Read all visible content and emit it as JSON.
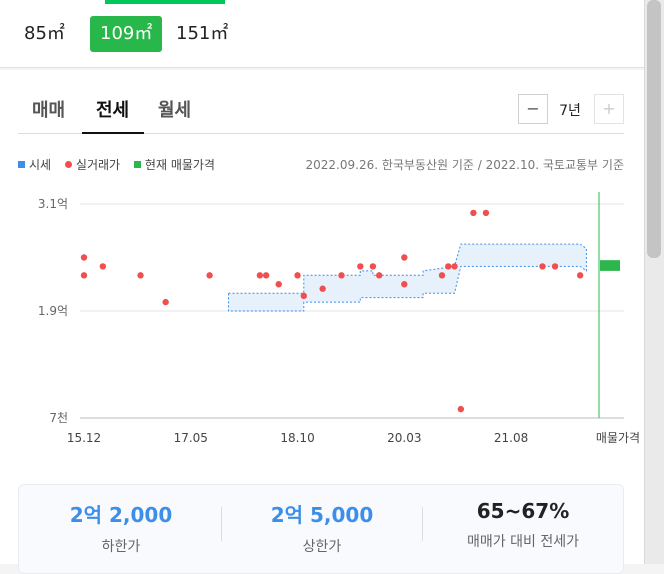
{
  "area_options": [
    {
      "label": "85㎡",
      "selected": false
    },
    {
      "label": "109㎡",
      "selected": true
    },
    {
      "label": "151㎡",
      "selected": false
    }
  ],
  "tabs": [
    {
      "label": "매매",
      "selected": false
    },
    {
      "label": "전세",
      "selected": true
    },
    {
      "label": "월세",
      "selected": false
    }
  ],
  "period": {
    "minus": "−",
    "value": "7년",
    "plus": "+"
  },
  "legend": [
    {
      "label": "시세",
      "icon": "square-blue"
    },
    {
      "label": "실거래가",
      "icon": "dot-red"
    },
    {
      "label": "현재 매물가격",
      "icon": "square-green"
    }
  ],
  "basis_text": "2022.09.26. 한국부동산원 기준 / 2022.10. 국토교통부 기준",
  "colors": {
    "accent_green": "#28b74a",
    "band_blue": "#3d8ee9",
    "deal_red": "#f04f4f",
    "listing_green": "#2cb64d"
  },
  "chart_data": {
    "type": "scatter",
    "y_unit": "억",
    "ylim": [
      0.7,
      3.1
    ],
    "y_ticks": [
      {
        "value": 3.1,
        "label": "3.1억"
      },
      {
        "value": 1.9,
        "label": "1.9억"
      },
      {
        "value": 0.7,
        "label": "7천"
      }
    ],
    "xlim": [
      "2015-12",
      "2022-10"
    ],
    "x_ticks": [
      {
        "date": "2015-12",
        "label": "15.12"
      },
      {
        "date": "2017-05",
        "label": "17.05"
      },
      {
        "date": "2018-10",
        "label": "18.10"
      },
      {
        "date": "2020-03",
        "label": "20.03"
      },
      {
        "date": "2021-08",
        "label": "21.08"
      }
    ],
    "x_end_label": "매물가격",
    "deals": [
      {
        "date": "2015-12",
        "price": 2.5
      },
      {
        "date": "2015-12",
        "price": 2.3
      },
      {
        "date": "2016-03",
        "price": 2.4
      },
      {
        "date": "2016-09",
        "price": 2.3
      },
      {
        "date": "2017-01",
        "price": 2.0
      },
      {
        "date": "2017-08",
        "price": 2.3
      },
      {
        "date": "2018-04",
        "price": 2.3
      },
      {
        "date": "2018-05",
        "price": 2.3
      },
      {
        "date": "2018-07",
        "price": 2.2
      },
      {
        "date": "2018-10",
        "price": 2.3
      },
      {
        "date": "2018-11",
        "price": 2.07
      },
      {
        "date": "2019-02",
        "price": 2.15
      },
      {
        "date": "2019-05",
        "price": 2.3
      },
      {
        "date": "2019-08",
        "price": 2.4
      },
      {
        "date": "2019-10",
        "price": 2.4
      },
      {
        "date": "2019-11",
        "price": 2.3
      },
      {
        "date": "2020-03",
        "price": 2.5
      },
      {
        "date": "2020-03",
        "price": 2.2
      },
      {
        "date": "2020-09",
        "price": 2.3
      },
      {
        "date": "2020-10",
        "price": 2.4
      },
      {
        "date": "2020-11",
        "price": 2.4
      },
      {
        "date": "2020-12",
        "price": 0.8
      },
      {
        "date": "2021-02",
        "price": 3.0
      },
      {
        "date": "2021-04",
        "price": 3.0
      },
      {
        "date": "2022-01",
        "price": 2.4
      },
      {
        "date": "2022-03",
        "price": 2.4
      },
      {
        "date": "2022-07",
        "price": 2.3
      }
    ],
    "market_band": [
      {
        "date": "2017-11",
        "low": 1.9,
        "high": 2.1
      },
      {
        "date": "2018-11",
        "low": 1.9,
        "high": 2.1
      },
      {
        "date": "2018-11",
        "low": 2.0,
        "high": 2.3
      },
      {
        "date": "2019-08",
        "low": 2.0,
        "high": 2.3
      },
      {
        "date": "2019-08",
        "low": 2.05,
        "high": 2.35
      },
      {
        "date": "2019-10",
        "low": 2.05,
        "high": 2.35
      },
      {
        "date": "2019-10",
        "low": 2.05,
        "high": 2.3
      },
      {
        "date": "2020-03",
        "low": 2.05,
        "high": 2.3
      },
      {
        "date": "2020-06",
        "low": 2.05,
        "high": 2.3
      },
      {
        "date": "2020-06",
        "low": 2.1,
        "high": 2.35
      },
      {
        "date": "2020-11",
        "low": 2.1,
        "high": 2.4
      },
      {
        "date": "2020-12",
        "low": 2.4,
        "high": 2.65
      },
      {
        "date": "2022-07",
        "low": 2.4,
        "high": 2.65
      },
      {
        "date": "2022-08",
        "low": 2.35,
        "high": 2.6
      }
    ],
    "listing_price": {
      "low": 2.35,
      "high": 2.47
    },
    "grid": true
  },
  "summary": [
    {
      "value": "2억 2,000",
      "label": "하한가"
    },
    {
      "value": "2억 5,000",
      "label": "상한가"
    },
    {
      "value": "65~67%",
      "label": "매매가 대비 전세가"
    }
  ]
}
